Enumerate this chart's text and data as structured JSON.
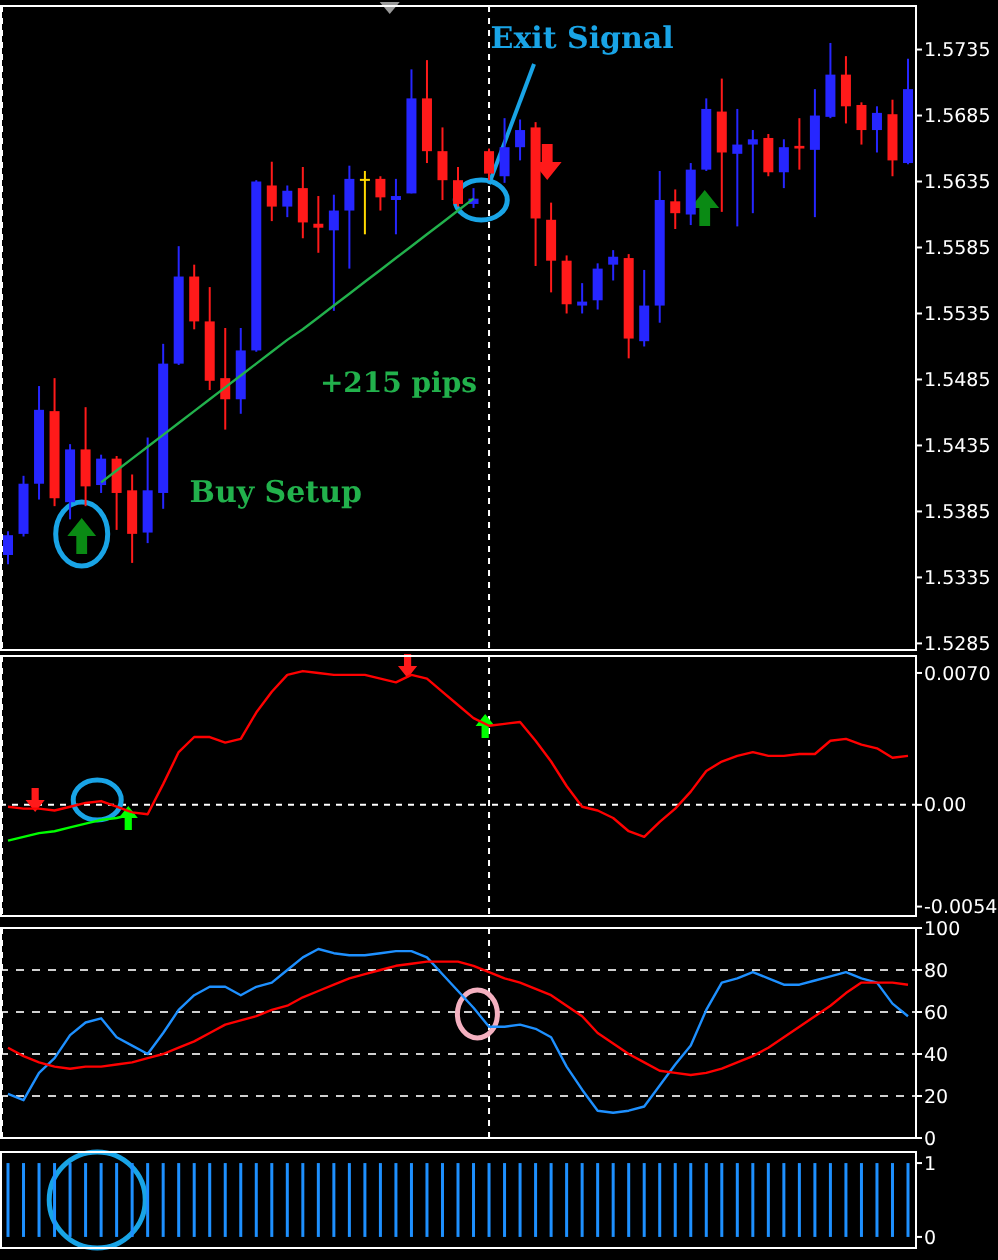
{
  "chart_data": [
    {
      "type": "candlestick",
      "categories": [
        null,
        null,
        null,
        null,
        null,
        null,
        null,
        null,
        null,
        null,
        null,
        null,
        null,
        null,
        null,
        null,
        null,
        null,
        null,
        null,
        null,
        null,
        null,
        null,
        null,
        null,
        null,
        null,
        null,
        null,
        null,
        null,
        null,
        null,
        null,
        null,
        null,
        null,
        null,
        null,
        null,
        null,
        null,
        null,
        null,
        null,
        null,
        null,
        null,
        null,
        null,
        null,
        null,
        null,
        null,
        null,
        null,
        null,
        null
      ],
      "ohlc": [
        [
          1.5352,
          1.537,
          1.5345,
          1.5367
        ],
        [
          1.5368,
          1.5412,
          1.5366,
          1.5406
        ],
        [
          1.5406,
          1.548,
          1.5394,
          1.5462
        ],
        [
          1.5461,
          1.5486,
          1.5389,
          1.5395
        ],
        [
          1.5392,
          1.5436,
          1.5379,
          1.5432
        ],
        [
          1.5432,
          1.5464,
          1.5389,
          1.5404
        ],
        [
          1.5405,
          1.5428,
          1.5399,
          1.5425
        ],
        [
          1.5425,
          1.5427,
          1.5371,
          1.5399
        ],
        [
          1.5401,
          1.5413,
          1.5346,
          1.5368
        ],
        [
          1.5369,
          1.5441,
          1.5361,
          1.5401
        ],
        [
          1.5399,
          1.5512,
          1.5387,
          1.5497
        ],
        [
          1.5497,
          1.5586,
          1.5496,
          1.5563
        ],
        [
          1.5563,
          1.5572,
          1.5523,
          1.5529
        ],
        [
          1.5529,
          1.5555,
          1.5477,
          1.5484
        ],
        [
          1.5486,
          1.5524,
          1.5447,
          1.547
        ],
        [
          1.547,
          1.5524,
          1.5459,
          1.5507
        ],
        [
          1.5507,
          1.5636,
          1.5506,
          1.5635
        ],
        [
          1.5632,
          1.565,
          1.5605,
          1.5616
        ],
        [
          1.5616,
          1.5632,
          1.5608,
          1.5628
        ],
        [
          1.563,
          1.5646,
          1.5592,
          1.5604
        ],
        [
          1.5603,
          1.5624,
          1.5581,
          1.56
        ],
        [
          1.5598,
          1.5625,
          1.5537,
          1.5613
        ],
        [
          1.5613,
          1.5647,
          1.5569,
          1.5637
        ],
        [
          1.5637,
          1.5643,
          1.5595,
          1.5637
        ],
        [
          1.5637,
          1.5639,
          1.5613,
          1.5623
        ],
        [
          1.5621,
          1.5637,
          1.5595,
          1.5624
        ],
        [
          1.5626,
          1.572,
          1.5626,
          1.5698
        ],
        [
          1.5698,
          1.5727,
          1.5649,
          1.5658
        ],
        [
          1.5658,
          1.5676,
          1.5621,
          1.5636
        ],
        [
          1.5636,
          1.5646,
          1.5616,
          1.5618
        ],
        [
          1.5618,
          1.563,
          1.5615,
          1.5622
        ],
        [
          1.5658,
          1.566,
          1.5636,
          1.5641
        ],
        [
          1.5639,
          1.5683,
          1.5634,
          1.5661
        ],
        [
          1.5661,
          1.5682,
          1.5651,
          1.5674
        ],
        [
          1.5676,
          1.568,
          1.5571,
          1.5607
        ],
        [
          1.5606,
          1.5619,
          1.5551,
          1.5575
        ],
        [
          1.5575,
          1.5579,
          1.5535,
          1.5542
        ],
        [
          1.5541,
          1.5558,
          1.5535,
          1.5544
        ],
        [
          1.5545,
          1.5573,
          1.5538,
          1.5569
        ],
        [
          1.5572,
          1.5583,
          1.556,
          1.5578
        ],
        [
          1.5577,
          1.558,
          1.5501,
          1.5516
        ],
        [
          1.5514,
          1.5568,
          1.551,
          1.5541
        ],
        [
          1.5541,
          1.5643,
          1.5528,
          1.5621
        ],
        [
          1.562,
          1.5629,
          1.5599,
          1.5611
        ],
        [
          1.561,
          1.5649,
          1.5602,
          1.5644
        ],
        [
          1.5644,
          1.5698,
          1.5643,
          1.569
        ],
        [
          1.5688,
          1.5713,
          1.5612,
          1.5657
        ],
        [
          1.5656,
          1.569,
          1.5601,
          1.5663
        ],
        [
          1.5663,
          1.5674,
          1.5611,
          1.5667
        ],
        [
          1.5668,
          1.5671,
          1.5639,
          1.5642
        ],
        [
          1.5642,
          1.5667,
          1.563,
          1.5661
        ],
        [
          1.5662,
          1.5683,
          1.5644,
          1.566
        ],
        [
          1.5659,
          1.5705,
          1.5608,
          1.5685
        ],
        [
          1.5684,
          1.574,
          1.5683,
          1.5716
        ],
        [
          1.5716,
          1.573,
          1.5679,
          1.5692
        ],
        [
          1.5693,
          1.5695,
          1.5663,
          1.5674
        ],
        [
          1.5674,
          1.5692,
          1.5657,
          1.5687
        ],
        [
          1.5686,
          1.5697,
          1.5639,
          1.5651
        ],
        [
          1.5649,
          1.5728,
          1.5648,
          1.5705
        ]
      ],
      "colors": [
        "#2626ff",
        "#2626ff",
        "#2626ff",
        "#ff1a1a",
        "#2626ff",
        "#ff1a1a",
        "#2626ff",
        "#ff1a1a",
        "#ff1a1a",
        "#2626ff",
        "#2626ff",
        "#2626ff",
        "#ff1a1a",
        "#ff1a1a",
        "#ff1a1a",
        "#2626ff",
        "#2626ff",
        "#ff1a1a",
        "#2626ff",
        "#ff1a1a",
        "#ff1a1a",
        "#2626ff",
        "#2626ff",
        "#ffd800",
        "#ff1a1a",
        "#2626ff",
        "#2626ff",
        "#ff1a1a",
        "#ff1a1a",
        "#ff1a1a",
        "#2626ff",
        "#ff1a1a",
        "#2626ff",
        "#2626ff",
        "#ff1a1a",
        "#ff1a1a",
        "#ff1a1a",
        "#2626ff",
        "#2626ff",
        "#2626ff",
        "#ff1a1a",
        "#2626ff",
        "#2626ff",
        "#ff1a1a",
        "#2626ff",
        "#2626ff",
        "#ff1a1a",
        "#2626ff",
        "#2626ff",
        "#ff1a1a",
        "#2626ff",
        "#ff1a1a",
        "#2626ff",
        "#2626ff",
        "#ff1a1a",
        "#ff1a1a",
        "#2626ff",
        "#ff1a1a",
        "#2626ff"
      ],
      "series": [
        {
          "type": "line",
          "color": "#22b14c",
          "values": [
            null,
            null,
            null,
            null,
            null,
            null,
            1.5407,
            1.5416,
            1.5425,
            1.5434,
            1.5443,
            1.5452,
            1.5461,
            1.547,
            1.5479,
            1.5488,
            1.5497,
            1.5506,
            1.5515,
            1.5523,
            1.5532,
            1.5541,
            1.555,
            1.5559,
            1.5568,
            1.5577,
            1.5586,
            1.5595,
            1.5604,
            1.5613,
            1.5622,
            null,
            null,
            null,
            null,
            null,
            null,
            null,
            null,
            null,
            null,
            null,
            null,
            null,
            null,
            null,
            null,
            null,
            null,
            null,
            null,
            null,
            null,
            null,
            null,
            null,
            null,
            null,
            null
          ]
        }
      ],
      "ylim": [
        1.528,
        1.5768
      ],
      "yticks": [
        {
          "value": 1.5285,
          "label": "1.5285"
        },
        {
          "value": 1.5335,
          "label": "1.5335"
        },
        {
          "value": 1.5385,
          "label": "1.5385"
        },
        {
          "value": 1.5435,
          "label": "1.5435"
        },
        {
          "value": 1.5485,
          "label": "1.5485"
        },
        {
          "value": 1.5535,
          "label": "1.5535"
        },
        {
          "value": 1.5585,
          "label": "1.5585"
        },
        {
          "value": 1.5635,
          "label": "1.5635"
        },
        {
          "value": 1.5685,
          "label": "1.5685"
        },
        {
          "value": 1.5735,
          "label": "1.5735"
        }
      ],
      "tick_labels": "y",
      "annotations": [
        "Exit Signal",
        "+215 pips",
        "Buy Setup"
      ]
    },
    {
      "type": "line",
      "categories": [
        null,
        null,
        null,
        null,
        null,
        null,
        null,
        null,
        null,
        null,
        null,
        null,
        null,
        null,
        null,
        null,
        null,
        null,
        null,
        null,
        null,
        null,
        null,
        null,
        null,
        null,
        null,
        null,
        null,
        null,
        null,
        null,
        null,
        null,
        null,
        null,
        null,
        null,
        null,
        null,
        null,
        null,
        null,
        null,
        null,
        null,
        null,
        null,
        null,
        null,
        null,
        null,
        null,
        null,
        null,
        null,
        null,
        null,
        null
      ],
      "series": [
        {
          "color": "#ff0000",
          "values": [
            -0.0001,
            -0.0002,
            -0.0002,
            -0.0003,
            -0.0001,
            0.0001,
            0.0002,
            -0.0001,
            -0.0004,
            -0.0005,
            0.0011,
            0.0028,
            0.0036,
            0.0036,
            0.0033,
            0.0035,
            0.0049,
            0.006,
            0.0069,
            0.0071,
            0.007,
            0.0069,
            0.0069,
            0.0069,
            0.0067,
            0.0065,
            0.0069,
            0.0067,
            0.006,
            0.0053,
            0.0046,
            0.0042,
            0.0043,
            0.0044,
            0.0034,
            0.0023,
            0.001,
            -0.0001,
            -0.0003,
            -0.0007,
            -0.0014,
            -0.0017,
            -0.0009,
            -0.0002,
            0.0007,
            0.0018,
            0.0023,
            0.0026,
            0.0028,
            0.0026,
            0.0026,
            0.0027,
            0.0027,
            0.0034,
            0.0035,
            0.0032,
            0.003,
            0.0025,
            0.0026
          ]
        },
        {
          "color": "#00ff00",
          "values": [
            -0.0019,
            -0.0017,
            -0.0015,
            -0.0014,
            -0.0012,
            -0.001,
            -0.0008,
            -0.0007,
            -0.0005,
            null,
            null,
            null,
            null,
            null,
            null,
            null,
            null,
            null,
            null,
            null,
            null,
            null,
            null,
            null,
            null,
            null,
            null,
            null,
            null,
            null,
            null,
            null,
            null,
            null,
            null,
            null,
            null,
            null,
            null,
            null,
            null,
            null,
            null,
            null,
            null,
            null,
            null,
            null,
            null,
            null,
            null,
            null,
            null,
            null,
            null,
            null,
            null,
            null,
            null
          ]
        }
      ],
      "ylim": [
        -0.0059,
        0.0079
      ],
      "yticks": [
        {
          "value": -0.0054,
          "label": "-0.0054"
        },
        {
          "value": 0,
          "label": "0.00"
        },
        {
          "value": 0.007,
          "label": "0.0070"
        }
      ],
      "tick_labels": "y",
      "ref_lines": [
        {
          "axis": "y",
          "value": 0,
          "color": "#ffffff",
          "line_style": "dashed"
        }
      ]
    },
    {
      "type": "line",
      "categories": [
        null,
        null,
        null,
        null,
        null,
        null,
        null,
        null,
        null,
        null,
        null,
        null,
        null,
        null,
        null,
        null,
        null,
        null,
        null,
        null,
        null,
        null,
        null,
        null,
        null,
        null,
        null,
        null,
        null,
        null,
        null,
        null,
        null,
        null,
        null,
        null,
        null,
        null,
        null,
        null,
        null,
        null,
        null,
        null,
        null,
        null,
        null,
        null,
        null,
        null,
        null,
        null,
        null,
        null,
        null,
        null,
        null,
        null,
        null
      ],
      "series": [
        {
          "color": "#1e90ff",
          "values": [
            21,
            18,
            31,
            38,
            49,
            55,
            57,
            48,
            44,
            40,
            50,
            61,
            68,
            72,
            72,
            68,
            72,
            74,
            80,
            86,
            90,
            88,
            87,
            87,
            88,
            89,
            89,
            86,
            78,
            70,
            62,
            53,
            53,
            54,
            52,
            48,
            34,
            23,
            13,
            12,
            13,
            15,
            25,
            35,
            44,
            61,
            74,
            76,
            79,
            76,
            73,
            73,
            75,
            77,
            79,
            76,
            74,
            64,
            58
          ]
        },
        {
          "color": "#ff0000",
          "values": [
            43,
            39,
            36,
            34,
            33,
            34,
            34,
            35,
            36,
            38,
            40,
            43,
            46,
            50,
            54,
            56,
            58,
            61,
            63,
            67,
            70,
            73,
            76,
            78,
            80,
            82,
            83,
            84,
            84,
            84,
            82,
            79,
            76,
            74,
            71,
            68,
            63,
            58,
            50,
            45,
            40,
            36,
            32,
            31,
            30,
            31,
            33,
            36,
            39,
            43,
            48,
            53,
            58,
            63,
            69,
            74,
            74,
            74,
            73
          ]
        }
      ],
      "ylim": [
        0,
        100
      ],
      "yticks": [
        0,
        20,
        40,
        60,
        80,
        100
      ],
      "grid": "y",
      "tick_labels": "y"
    },
    {
      "type": "bar",
      "categories": [
        null,
        null,
        null,
        null,
        null,
        null,
        null,
        null,
        null,
        null,
        null,
        null,
        null,
        null,
        null,
        null,
        null,
        null,
        null,
        null,
        null,
        null,
        null,
        null,
        null,
        null,
        null,
        null,
        null,
        null,
        null,
        null,
        null,
        null,
        null,
        null,
        null,
        null,
        null,
        null,
        null,
        null,
        null,
        null,
        null,
        null,
        null,
        null,
        null,
        null,
        null,
        null,
        null,
        null,
        null,
        null,
        null,
        null,
        null
      ],
      "values": [
        1,
        1,
        1,
        1,
        1,
        1,
        1,
        1,
        1,
        1,
        1,
        1,
        1,
        1,
        1,
        1,
        1,
        1,
        1,
        1,
        1,
        1,
        1,
        1,
        1,
        1,
        1,
        1,
        1,
        1,
        1,
        1,
        1,
        1,
        1,
        1,
        1,
        1,
        1,
        1,
        1,
        1,
        1,
        1,
        1,
        1,
        1,
        1,
        1,
        1,
        1,
        1,
        1,
        1,
        1,
        1,
        1,
        1,
        1
      ],
      "color": "#1e90ff",
      "ylim": [
        -0.15,
        1.15
      ],
      "yticks": [
        0,
        1
      ],
      "tick_labels": "y"
    }
  ]
}
